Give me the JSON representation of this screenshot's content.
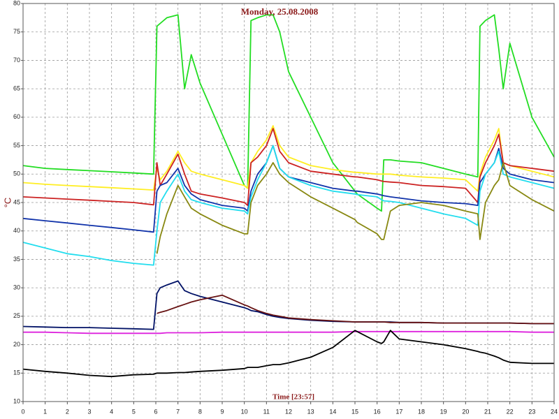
{
  "chart_data": {
    "type": "line",
    "title": "Monday, 25.08.2008",
    "x_label": "Time [23:57]",
    "y_label": "°C",
    "grid": true,
    "xlim": [
      0,
      24
    ],
    "xticks": [
      0,
      1,
      2,
      3,
      4,
      5,
      6,
      7,
      8,
      9,
      10,
      11,
      12,
      13,
      14,
      15,
      16,
      17,
      18,
      19,
      20,
      21,
      22,
      23,
      24
    ],
    "ylim": [
      10,
      80
    ],
    "yticks": [
      10,
      15,
      20,
      25,
      30,
      35,
      40,
      45,
      50,
      55,
      60,
      65,
      70,
      75,
      80
    ],
    "x": [
      0,
      1,
      2,
      3,
      4,
      5,
      5.9,
      6.05,
      6.2,
      6.5,
      7,
      7.3,
      7.6,
      8,
      9,
      10,
      10.15,
      10.3,
      10.6,
      11,
      11.3,
      11.6,
      12,
      13,
      14,
      15,
      15.1,
      16,
      16.2,
      16.3,
      16.6,
      17,
      18,
      19,
      20,
      20.55,
      20.65,
      20.9,
      21.3,
      21.5,
      21.7,
      22,
      23,
      24
    ],
    "series": [
      {
        "color": "#22dd22",
        "values": [
          51.5,
          51,
          50.8,
          50.6,
          50.4,
          50.2,
          50,
          76,
          76.5,
          77.5,
          78,
          65,
          71,
          66,
          57,
          48,
          47.5,
          77,
          77.5,
          78,
          78,
          75,
          68,
          60,
          52,
          47,
          46.5,
          44,
          43.5,
          52.5,
          52.5,
          52.3,
          52,
          51,
          50,
          49.5,
          76,
          77,
          78,
          72,
          65,
          73,
          60,
          53
        ]
      },
      {
        "color": "#ffee22",
        "values": [
          48.5,
          48.2,
          48,
          47.8,
          47.6,
          47.4,
          47.2,
          51,
          49,
          50.5,
          54,
          52,
          50.5,
          50,
          49,
          48,
          47.5,
          52,
          54,
          56,
          58.5,
          55,
          53,
          51.5,
          50.8,
          50.3,
          50.3,
          50,
          50,
          50,
          50,
          49.8,
          49.5,
          49.3,
          49,
          47,
          50,
          53,
          56,
          58,
          52,
          51.5,
          50.5,
          49.5
        ]
      },
      {
        "color": "#cc2222",
        "values": [
          46,
          45.8,
          45.6,
          45.4,
          45.2,
          45,
          44.6,
          52,
          48,
          50,
          53.5,
          50,
          47,
          46.5,
          45.8,
          45,
          44.5,
          52,
          53,
          55,
          58,
          54,
          52,
          50.5,
          50,
          49.5,
          49.5,
          49,
          48.8,
          48.7,
          48.6,
          48.5,
          48,
          47.8,
          47.5,
          45,
          49.5,
          52,
          55,
          57,
          52,
          51.5,
          51,
          50.5
        ]
      },
      {
        "color": "#1133aa",
        "values": [
          42.2,
          41.8,
          41.4,
          41,
          40.6,
          40.2,
          39.8,
          47,
          48,
          48.5,
          51,
          48,
          46.5,
          45.5,
          44.5,
          44,
          43.5,
          47,
          50,
          52,
          55,
          51,
          49.5,
          48.5,
          47.5,
          47,
          47,
          46.5,
          46.3,
          46.2,
          46,
          45.8,
          45.3,
          45,
          44.8,
          44.5,
          48.5,
          50,
          52,
          54.5,
          51,
          50,
          49,
          48.5
        ]
      },
      {
        "color": "#22ddee",
        "values": [
          38,
          37,
          36,
          35.5,
          34.8,
          34.3,
          34,
          40,
          45,
          47,
          50,
          47,
          45.5,
          45,
          44,
          43.5,
          43,
          46,
          49,
          52,
          55,
          51,
          49.5,
          48,
          47,
          46.5,
          46.4,
          46,
          45.5,
          45.3,
          45.2,
          45,
          44,
          43,
          42.2,
          41,
          47,
          50,
          52,
          54,
          50,
          49.5,
          48.5,
          47.5
        ]
      },
      {
        "color": "#888811",
        "values": [
          null,
          null,
          null,
          null,
          null,
          null,
          null,
          36,
          39,
          43,
          48,
          46,
          44,
          43,
          41,
          39.5,
          39.5,
          45,
          48,
          50,
          52,
          50,
          48.5,
          46,
          44,
          42,
          41.5,
          39.5,
          38.5,
          38.5,
          43.5,
          44.5,
          45,
          44.5,
          43.5,
          43,
          38.5,
          45,
          48,
          49,
          52,
          48,
          45.5,
          43.5
        ]
      },
      {
        "color": "#001166",
        "values": [
          23.2,
          23.1,
          23,
          23,
          22.9,
          22.8,
          22.7,
          29,
          30,
          30.5,
          31.2,
          29.5,
          29,
          28.5,
          27.5,
          26.5,
          26.3,
          26,
          25.8,
          25.3,
          25,
          24.8,
          24.6,
          24.3,
          24.1,
          24,
          24,
          24,
          24,
          24,
          24,
          23.9,
          23.9,
          23.8,
          23.8,
          23.8,
          23.8,
          23.8,
          23.8,
          23.8,
          23.8,
          23.8,
          23.7,
          23.7
        ]
      },
      {
        "color": "#661111",
        "values": [
          null,
          null,
          null,
          null,
          null,
          null,
          null,
          25.5,
          25.7,
          26,
          26.7,
          27.1,
          27.5,
          27.9,
          28.7,
          27,
          26.8,
          26.5,
          26,
          25.5,
          25.2,
          25,
          24.7,
          24.4,
          24.2,
          24,
          24,
          24,
          24,
          24,
          23.9,
          23.9,
          23.9,
          23.8,
          23.8,
          23.8,
          23.8,
          23.8,
          23.8,
          23.8,
          23.8,
          23.8,
          23.7,
          23.7
        ]
      },
      {
        "color": "#dd22dd",
        "values": [
          22.2,
          22.2,
          22.1,
          22,
          22,
          22,
          22,
          22,
          22,
          22.1,
          22.1,
          22.1,
          22.1,
          22.1,
          22.2,
          22.2,
          22.2,
          22.2,
          22.2,
          22.2,
          22.2,
          22.2,
          22.2,
          22.2,
          22.2,
          22.3,
          22.3,
          22.3,
          22.3,
          22.3,
          22.3,
          22.3,
          22.3,
          22.3,
          22.3,
          22.3,
          22.3,
          22.3,
          22.3,
          22.3,
          22.3,
          22.3,
          22.2,
          22.2
        ]
      },
      {
        "color": "#000000",
        "values": [
          15.7,
          15.3,
          15,
          14.6,
          14.4,
          14.7,
          14.8,
          15,
          15,
          15,
          15.1,
          15.1,
          15.2,
          15.3,
          15.5,
          15.8,
          16,
          16,
          16,
          16.3,
          16.5,
          16.5,
          16.8,
          17.8,
          19.5,
          22.5,
          22.3,
          20.5,
          20.2,
          20.5,
          22.5,
          21,
          20.5,
          20,
          19.3,
          18.8,
          18.7,
          18.5,
          18,
          17.7,
          17.3,
          16.9,
          16.7,
          16.7
        ]
      }
    ]
  }
}
